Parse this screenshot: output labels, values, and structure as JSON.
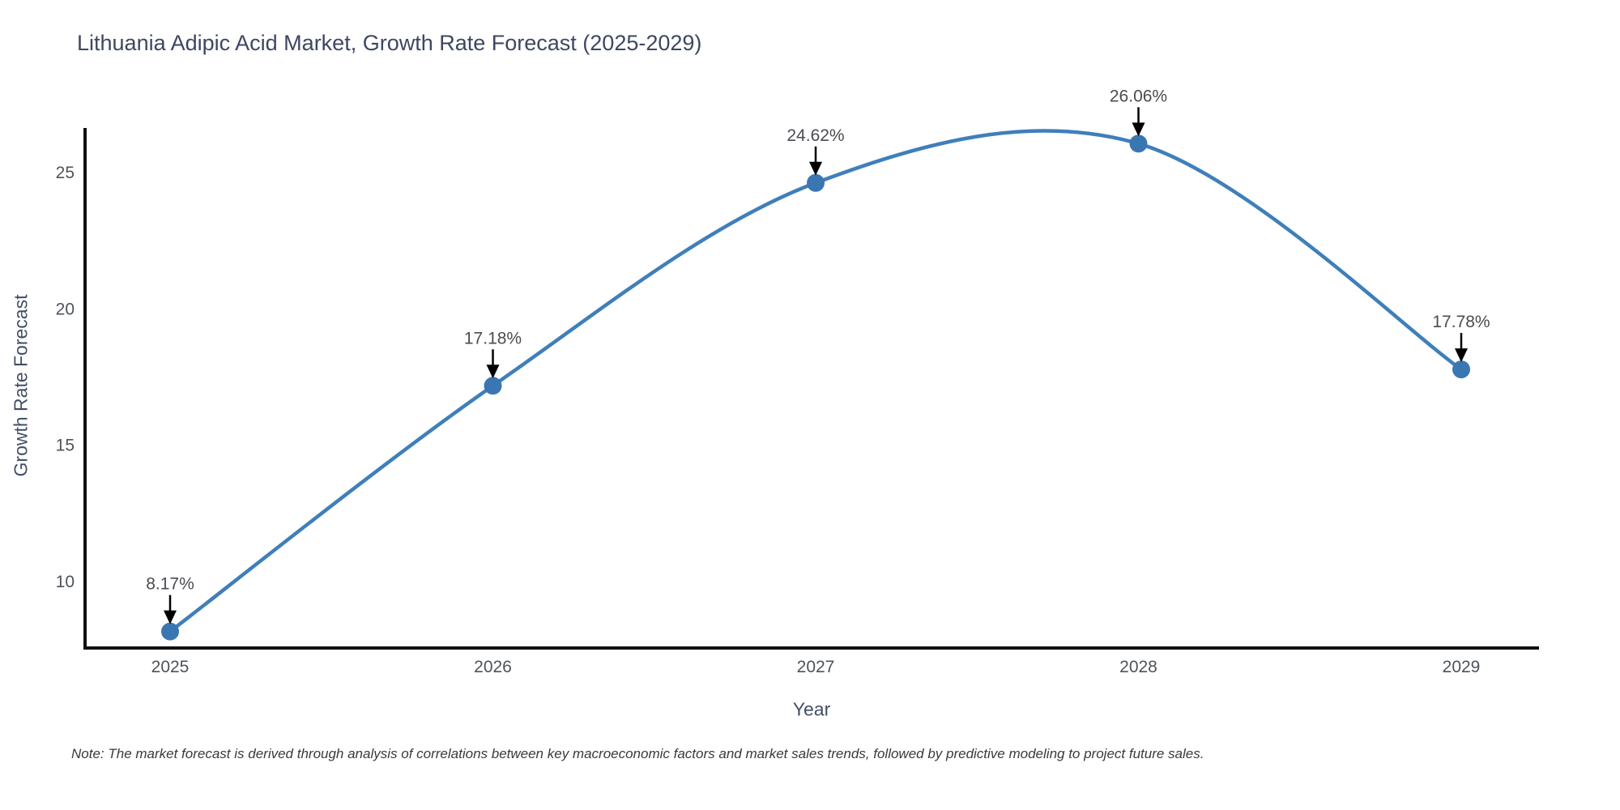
{
  "title": "Lithuania Adipic Acid Market, Growth Rate Forecast (2025-2029)",
  "note": "Note: The market forecast is derived through analysis of correlations between key macroeconomic factors and market sales trends, followed by predictive modeling to project future sales.",
  "colors": {
    "line": "#3f7fba",
    "marker": "#3a77b2",
    "axis_line": "#111111",
    "arrow": "#000000",
    "title_text": "#3d4760",
    "axis_title_text": "#424e66",
    "tick_text": "#4e535a",
    "annotation_text": "#4b4b51",
    "note_text": "#3a3a3a",
    "background": "#ffffff"
  },
  "chart_data": {
    "type": "line",
    "title": "Lithuania Adipic Acid Market, Growth Rate Forecast (2025-2029)",
    "xlabel": "Year",
    "ylabel": "Growth Rate Forecast",
    "x": [
      2025,
      2026,
      2027,
      2028,
      2029
    ],
    "values": [
      8.17,
      17.18,
      24.62,
      26.06,
      17.78
    ],
    "point_labels": [
      "8.17%",
      "17.18%",
      "24.62%",
      "26.06%",
      "17.78%"
    ],
    "x_tick_labels": [
      "2025",
      "2026",
      "2027",
      "2028",
      "2029"
    ],
    "y_ticks": [
      10,
      15,
      20,
      25
    ],
    "xlim": [
      2024.74,
      2029.25
    ],
    "ylim": [
      7.55,
      26.66
    ],
    "line_shape": "spline",
    "grid": false,
    "legend_position": "none",
    "annotation_style": "value-label-with-down-arrow"
  }
}
